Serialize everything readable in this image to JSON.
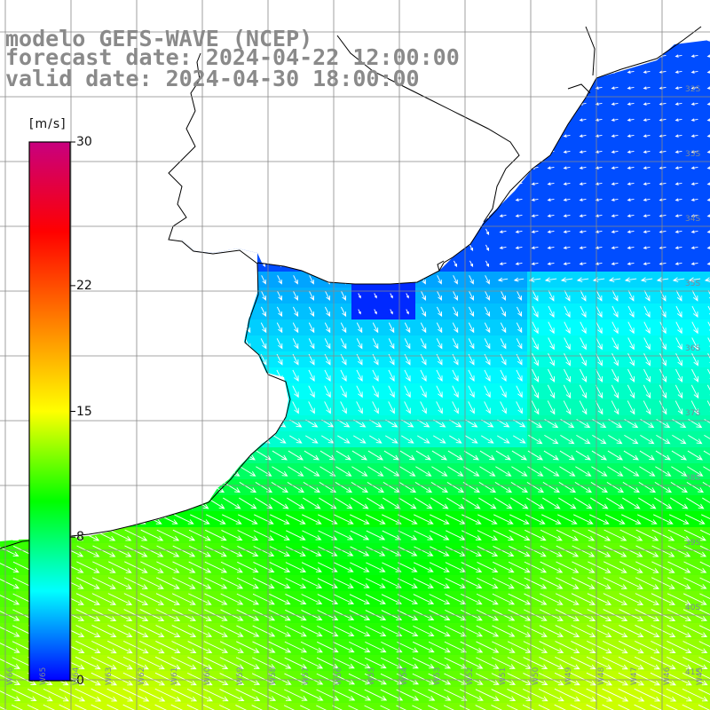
{
  "title": {
    "line1": "modelo GEFS-WAVE (NCEP)",
    "line2": "forecast date: 2024-04-22 12:00:00",
    "line3": "valid date: 2024-04-30 18:00:00"
  },
  "colorbar": {
    "unit": "[m/s]",
    "ticks": [
      {
        "label": "30",
        "value": 30
      },
      {
        "label": "22",
        "value": 22
      },
      {
        "label": "15",
        "value": 15
      },
      {
        "label": "8",
        "value": 8
      },
      {
        "label": "0",
        "value": 0
      }
    ],
    "range": [
      0,
      30
    ],
    "colors": [
      "#0000ff",
      "#00ffff",
      "#00ff00",
      "#ffff00",
      "#ff7f00",
      "#ff0000",
      "#c8007f"
    ]
  },
  "grid": {
    "lat_labels": [
      "32S",
      "33S",
      "34S",
      "35S",
      "36S",
      "37S",
      "38S",
      "39S",
      "40S",
      "41S"
    ],
    "lon_labels": [
      "W66",
      "W65",
      "W64",
      "W63",
      "W62",
      "W61",
      "W60",
      "W59",
      "W58",
      "W57",
      "W56",
      "W55",
      "W54",
      "W53",
      "W52",
      "W51",
      "W50",
      "W49",
      "W48",
      "W47",
      "W46",
      "W45"
    ]
  },
  "colors": {
    "land": "#ffffff",
    "coast": "#000000",
    "grid": "#888888",
    "arrow": "#ffffff",
    "title": "#8a8a8a"
  }
}
